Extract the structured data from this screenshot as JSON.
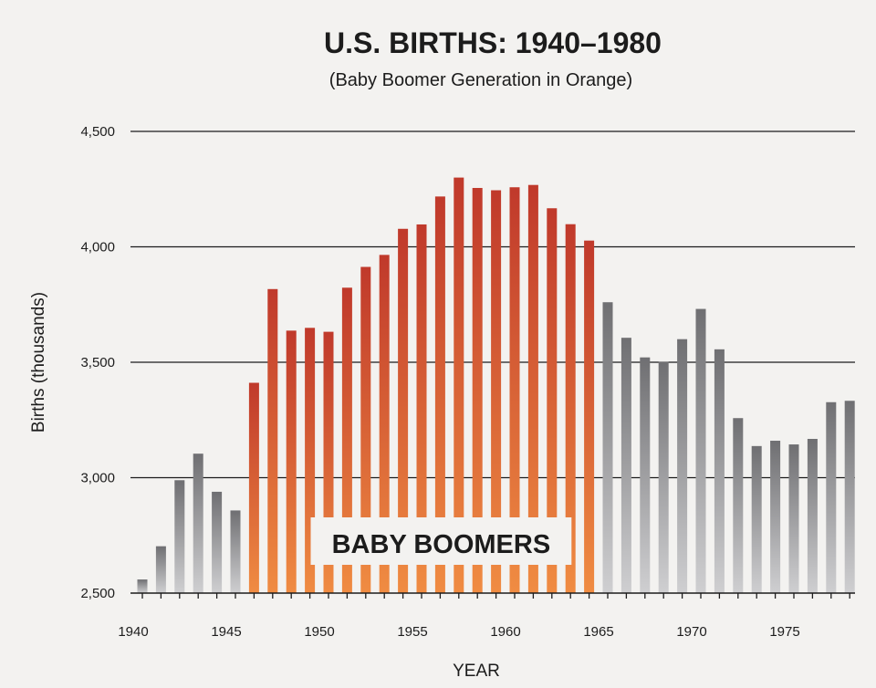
{
  "chart_data": {
    "type": "bar",
    "title": "U.S. BIRTHS: 1940–1980",
    "subtitle": "(Baby Boomer Generation in Orange)",
    "xlabel": "YEAR",
    "ylabel": "Births (thousands)",
    "ylim": [
      2500,
      4500
    ],
    "yticks": [
      "4,500",
      "4,000",
      "3,500",
      "3,000",
      "2,500"
    ],
    "ytick_values": [
      4500,
      4000,
      3500,
      3000,
      2500
    ],
    "xtick_labels": [
      "1940",
      "1945",
      "1950",
      "1955",
      "1960",
      "1965",
      "1970",
      "1975"
    ],
    "xtick_values": [
      1940,
      1945,
      1950,
      1955,
      1960,
      1965,
      1970,
      1975
    ],
    "x": [
      1940,
      1941,
      1942,
      1943,
      1944,
      1945,
      1946,
      1947,
      1948,
      1949,
      1950,
      1951,
      1952,
      1953,
      1954,
      1955,
      1956,
      1957,
      1958,
      1959,
      1960,
      1961,
      1962,
      1963,
      1964,
      1965,
      1966,
      1967,
      1968,
      1969,
      1970,
      1971,
      1972,
      1973,
      1974,
      1975,
      1976,
      1977,
      1978
    ],
    "values": [
      2559,
      2703,
      2989,
      3104,
      2939,
      2858,
      3411,
      3817,
      3637,
      3649,
      3632,
      3823,
      3913,
      3965,
      4078,
      4097,
      4218,
      4300,
      4255,
      4245,
      4258,
      4268,
      4167,
      4098,
      4027,
      3760,
      3606,
      3521,
      3502,
      3600,
      3731,
      3556,
      3258,
      3137,
      3160,
      3144,
      3168,
      3327,
      3333
    ],
    "highlight_range": [
      1946,
      1964
    ],
    "highlight_label": "BABY BOOMERS",
    "colors": {
      "boomer_top": "#c0392b",
      "boomer_bottom": "#f08c42",
      "other_top": "#6f6f72",
      "other_bottom": "#cfcfd1",
      "grid": "#1c1c1c",
      "background": "#f3f2f0"
    },
    "grid": true
  }
}
